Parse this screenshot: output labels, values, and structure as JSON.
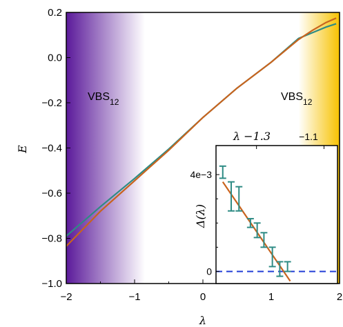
{
  "chart_data": [
    {
      "type": "line",
      "xlabel": "λ",
      "ylabel": "E",
      "xlim": [
        -2,
        2
      ],
      "ylim": [
        -1.0,
        0.2
      ],
      "xticks": [
        "−2",
        "−1",
        "0",
        "1",
        "2"
      ],
      "yticks": [
        "−1.0",
        "−0.8",
        "−0.6",
        "−0.4",
        "−0.2",
        "0.0",
        "0.2"
      ],
      "regions": [
        {
          "label": "VBS",
          "sub": "12",
          "color": "#5b1a9a",
          "from": -2.0,
          "to": -0.85
        },
        {
          "label": "VBS",
          "sub": "12",
          "color": "#f7c200",
          "from": 1.4,
          "to": 2.0
        }
      ],
      "series": [
        {
          "color": "#2e8b84",
          "x": [
            -2.0,
            -1.5,
            -1.0,
            -0.5,
            0.0,
            0.5,
            1.0,
            1.4,
            1.6,
            1.8,
            1.95
          ],
          "y": [
            -0.79,
            -0.66,
            -0.535,
            -0.405,
            -0.265,
            -0.135,
            -0.02,
            0.085,
            0.11,
            0.135,
            0.15
          ]
        },
        {
          "color": "#c8641e",
          "x": [
            -2.0,
            -1.5,
            -1.0,
            -0.5,
            0.0,
            0.5,
            1.0,
            1.4,
            1.6,
            1.8,
            1.95
          ],
          "y": [
            -0.835,
            -0.68,
            -0.545,
            -0.41,
            -0.265,
            -0.135,
            -0.02,
            0.08,
            0.12,
            0.155,
            0.175
          ]
        }
      ]
    },
    {
      "type": "scatter",
      "ylabel": "Δ(λ)",
      "xlabel_top": "λ −1.3",
      "top_tick_right": "−1.1",
      "yticks": [
        "0",
        "4e−3"
      ],
      "ylim": [
        -0.0005,
        0.0052
      ],
      "xlim": [
        -1.42,
        -1.06
      ],
      "points": {
        "x": [
          -1.4,
          -1.375,
          -1.352,
          -1.318,
          -1.298,
          -1.278,
          -1.253,
          -1.231,
          -1.208
        ],
        "y": [
          0.0041,
          0.0031,
          0.003,
          0.002,
          0.0017,
          0.0013,
          0.0006,
          0.0001,
          0.0002
        ],
        "err": [
          0.00025,
          0.0006,
          0.0005,
          0.00018,
          0.0003,
          0.0003,
          0.0004,
          0.0003,
          0.0002
        ]
      },
      "fit": {
        "x": [
          -1.4,
          -1.2
        ],
        "y": [
          0.0037,
          -0.0004
        ],
        "color": "#c8641e"
      },
      "zero_line": {
        "y": 0,
        "color": "#1f3bd6"
      },
      "marker_color": "#2e8b84"
    }
  ]
}
